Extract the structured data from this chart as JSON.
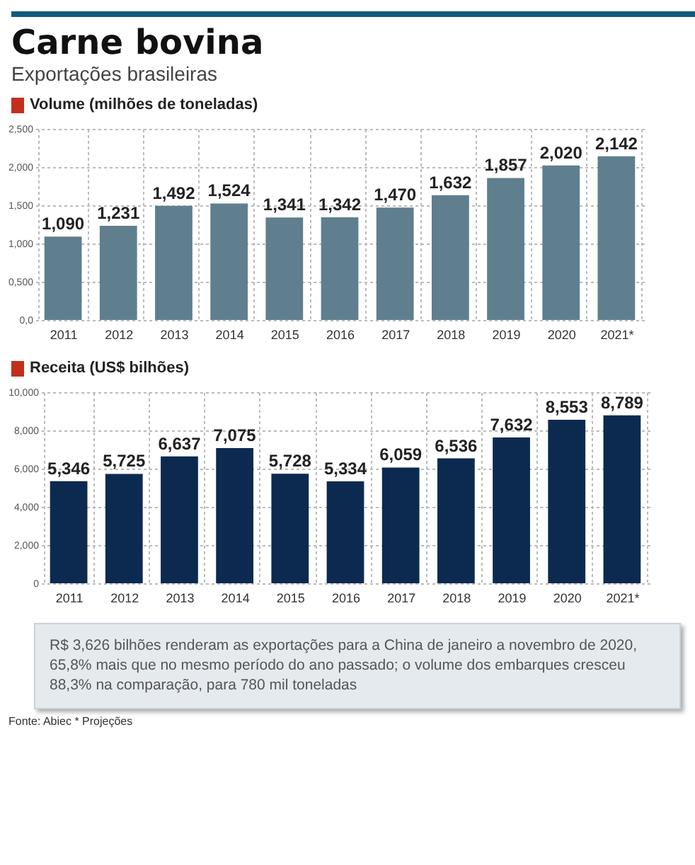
{
  "chart_data": [
    {
      "type": "bar",
      "title": "Carne bovina",
      "subtitle": "Exportações brasileiras",
      "ylabel": "Volume (milhões de toneladas)",
      "categories": [
        "2011",
        "2012",
        "2013",
        "2014",
        "2015",
        "2016",
        "2017",
        "2018",
        "2019",
        "2020",
        "2021*"
      ],
      "values": [
        1.09,
        1.231,
        1.492,
        1.524,
        1.341,
        1.342,
        1.47,
        1.632,
        1.857,
        2.02,
        2.142
      ],
      "value_labels": [
        "1,090",
        "1,231",
        "1,492",
        "1,524",
        "1,341",
        "1,342",
        "1,470",
        "1,632",
        "1,857",
        "2,020",
        "2,142"
      ],
      "color": "#5f7f8e",
      "ylim": [
        0,
        2.5
      ],
      "yticks": [
        {
          "value": 0,
          "label": "0,0"
        },
        {
          "value": 0.5,
          "label": "0,500"
        },
        {
          "value": 1,
          "label": "1,000"
        },
        {
          "value": 1.5,
          "label": "1,500"
        },
        {
          "value": 2,
          "label": "2,000"
        },
        {
          "value": 2.5,
          "label": "2,500"
        }
      ],
      "grid": true
    },
    {
      "type": "bar",
      "ylabel": "Receita (US$ bilhões)",
      "categories": [
        "2011",
        "2012",
        "2013",
        "2014",
        "2015",
        "2016",
        "2017",
        "2018",
        "2019",
        "2020",
        "2021*"
      ],
      "values": [
        5.346,
        5.725,
        6.637,
        7.075,
        5.728,
        5.334,
        6.059,
        6.536,
        7.632,
        8.553,
        8.789
      ],
      "value_labels": [
        "5,346",
        "5,725",
        "6,637",
        "7,075",
        "5,728",
        "5,334",
        "6,059",
        "6,536",
        "7,632",
        "8,553",
        "8,789"
      ],
      "color": "#0c2a50",
      "ylim": [
        0,
        10
      ],
      "yticks": [
        0,
        {
          "value": 2,
          "label": "2,000"
        },
        {
          "value": 4,
          "label": "4,000"
        },
        {
          "value": 6,
          "label": "6,000"
        },
        {
          "value": 8,
          "label": "8,000"
        },
        {
          "value": 10,
          "label": "10,000"
        }
      ],
      "grid": true,
      "annotations": [
        "R$ 3,626 bilhões renderam as exportações para a China de janeiro a novembro de 2020, 65,8% mais que no mesmo período do ano passado; o volume dos embarques cresceu 88,3% na comparação, para 780 mil toneladas",
        "Fonte: Abiec * Projeções"
      ]
    }
  ]
}
